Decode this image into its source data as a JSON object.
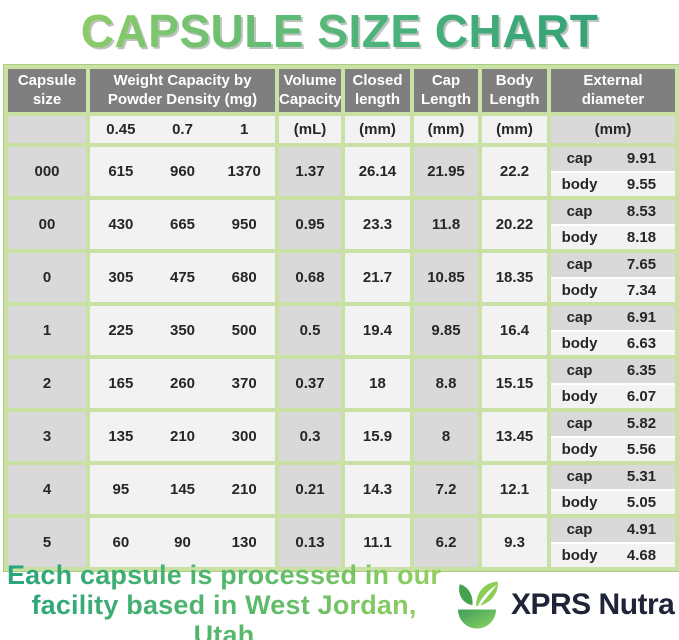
{
  "title": "CAPSULE SIZE CHART",
  "colors": {
    "border_green": "#c9e1a4",
    "header_gray": "#7f7f7f",
    "cell_gray": "#d9d9d9",
    "cell_light": "#f2f2f2",
    "title_gradient_start": "#9ad164",
    "title_gradient_end": "#2d9e74",
    "brand_navy": "#1f2438"
  },
  "table": {
    "headers": {
      "capsule_size": "Capsule size",
      "weight": "Weight Capacity by Powder Density (mg)",
      "volume": "Volume Capacity",
      "closed": "Closed length",
      "cap_length": "Cap Length",
      "body_length": "Body Length",
      "external": "External diameter"
    },
    "subheader": {
      "densities": [
        "0.45",
        "0.7",
        "1"
      ],
      "volume_unit": "(mL)",
      "closed_unit": "(mm)",
      "cap_unit": "(mm)",
      "body_unit": "(mm)",
      "external_unit": "(mm)"
    },
    "ext_labels": {
      "cap": "cap",
      "body": "body"
    },
    "rows": [
      {
        "size": "000",
        "weights": [
          "615",
          "960",
          "1370"
        ],
        "volume": "1.37",
        "closed": "26.14",
        "cap_length": "21.95",
        "body_length": "22.2",
        "cap_diameter": "9.91",
        "body_diameter": "9.55"
      },
      {
        "size": "00",
        "weights": [
          "430",
          "665",
          "950"
        ],
        "volume": "0.95",
        "closed": "23.3",
        "cap_length": "11.8",
        "body_length": "20.22",
        "cap_diameter": "8.53",
        "body_diameter": "8.18"
      },
      {
        "size": "0",
        "weights": [
          "305",
          "475",
          "680"
        ],
        "volume": "0.68",
        "closed": "21.7",
        "cap_length": "10.85",
        "body_length": "18.35",
        "cap_diameter": "7.65",
        "body_diameter": "7.34"
      },
      {
        "size": "1",
        "weights": [
          "225",
          "350",
          "500"
        ],
        "volume": "0.5",
        "closed": "19.4",
        "cap_length": "9.85",
        "body_length": "16.4",
        "cap_diameter": "6.91",
        "body_diameter": "6.63"
      },
      {
        "size": "2",
        "weights": [
          "165",
          "260",
          "370"
        ],
        "volume": "0.37",
        "closed": "18",
        "cap_length": "8.8",
        "body_length": "15.15",
        "cap_diameter": "6.35",
        "body_diameter": "6.07"
      },
      {
        "size": "3",
        "weights": [
          "135",
          "210",
          "300"
        ],
        "volume": "0.3",
        "closed": "15.9",
        "cap_length": "8",
        "body_length": "13.45",
        "cap_diameter": "5.82",
        "body_diameter": "5.56"
      },
      {
        "size": "4",
        "weights": [
          "95",
          "145",
          "210"
        ],
        "volume": "0.21",
        "closed": "14.3",
        "cap_length": "7.2",
        "body_length": "12.1",
        "cap_diameter": "5.31",
        "body_diameter": "5.05"
      },
      {
        "size": "5",
        "weights": [
          "60",
          "90",
          "130"
        ],
        "volume": "0.13",
        "closed": "11.1",
        "cap_length": "6.2",
        "body_length": "9.3",
        "cap_diameter": "4.91",
        "body_diameter": "4.68"
      }
    ]
  },
  "footer": {
    "note_line1": "Each capsule is processed in our",
    "note_line2": "facility based in West Jordan, Utah",
    "brand": "XPRS Nutra"
  },
  "chart_data": {
    "type": "table",
    "title": "CAPSULE SIZE CHART",
    "columns": [
      "Capsule size",
      "Weight Capacity 0.45 density (mg)",
      "Weight Capacity 0.7 density (mg)",
      "Weight Capacity 1 density (mg)",
      "Volume Capacity (mL)",
      "Closed length (mm)",
      "Cap Length (mm)",
      "Body Length (mm)",
      "External diameter cap (mm)",
      "External diameter body (mm)"
    ],
    "rows": [
      [
        "000",
        615,
        960,
        1370,
        1.37,
        26.14,
        21.95,
        22.2,
        9.91,
        9.55
      ],
      [
        "00",
        430,
        665,
        950,
        0.95,
        23.3,
        11.8,
        20.22,
        8.53,
        8.18
      ],
      [
        "0",
        305,
        475,
        680,
        0.68,
        21.7,
        10.85,
        18.35,
        7.65,
        7.34
      ],
      [
        "1",
        225,
        350,
        500,
        0.5,
        19.4,
        9.85,
        16.4,
        6.91,
        6.63
      ],
      [
        "2",
        165,
        260,
        370,
        0.37,
        18,
        8.8,
        15.15,
        6.35,
        6.07
      ],
      [
        "3",
        135,
        210,
        300,
        0.3,
        15.9,
        8,
        13.45,
        5.82,
        5.56
      ],
      [
        "4",
        95,
        145,
        210,
        0.21,
        14.3,
        7.2,
        12.1,
        5.31,
        5.05
      ],
      [
        "5",
        60,
        90,
        130,
        0.13,
        11.1,
        6.2,
        9.3,
        4.91,
        4.68
      ]
    ]
  }
}
